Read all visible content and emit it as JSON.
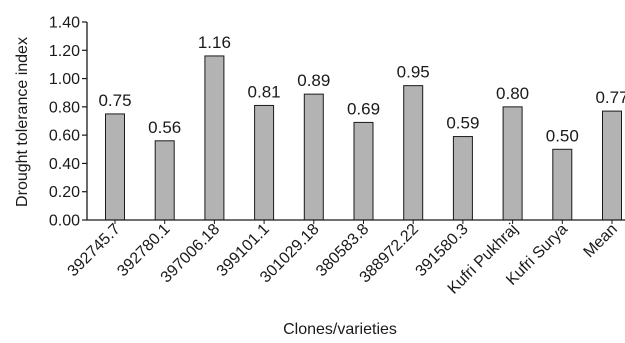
{
  "chart_data": {
    "type": "bar",
    "categories": [
      "392745.7",
      "392780.1",
      "397006.18",
      "399101.1",
      "301029.18",
      "380583.8",
      "388972.22",
      "391580.3",
      "Kufri Pukhraj",
      "Kufri Surya",
      "Mean"
    ],
    "values": [
      0.75,
      0.56,
      1.16,
      0.81,
      0.89,
      0.69,
      0.95,
      0.59,
      0.8,
      0.5,
      0.77
    ],
    "value_labels": [
      "0.75",
      "0.56",
      "1.16",
      "0.81",
      "0.89",
      "0.69",
      "0.95",
      "0.59",
      "0.80",
      "0.50",
      "0.77"
    ],
    "title": "",
    "xlabel": "Clones/varieties",
    "ylabel": "Drought tolerance index",
    "ylim": [
      0,
      1.4
    ],
    "yticks": [
      "0.00",
      "0.20",
      "0.40",
      "0.60",
      "0.80",
      "1.00",
      "1.20",
      "1.40"
    ],
    "grid": false,
    "bar_color": "#b3b3b3",
    "bar_edge_color": "#1a1a1a"
  }
}
